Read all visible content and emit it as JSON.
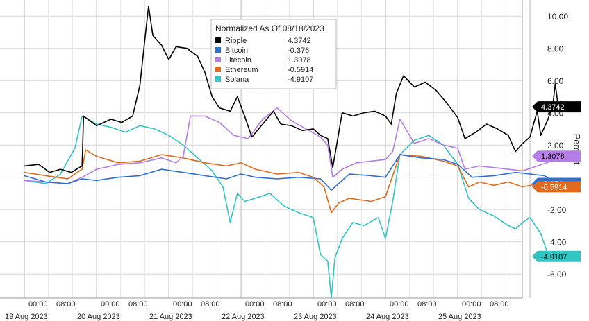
{
  "chart_data": {
    "type": "line",
    "legend": {
      "title": "Normalized As Of 08/18/2023",
      "placement": "top-center"
    },
    "ylabel": "Percent",
    "ylim": [
      -7.5,
      11
    ],
    "yticks": [
      -6,
      -4,
      -2,
      2,
      4,
      6,
      8,
      10
    ],
    "ytick_labels": [
      "-6.00",
      "-4.00",
      "-2.00",
      "2.00",
      "4.00",
      "6.00",
      "8.00",
      "10.00"
    ],
    "grid": true,
    "day_labels": [
      "19 Aug 2023",
      "20 Aug 2023",
      "21 Aug 2023",
      "22 Aug 2023",
      "23 Aug 2023",
      "24 Aug 2023",
      "25 Aug 2023"
    ],
    "time_labels": [
      "00:00",
      "08:00"
    ],
    "x_unit": "days from 00:00 19 Aug 2023",
    "series": [
      {
        "name": "Ripple",
        "color": "#000000",
        "last_value": "4.3742",
        "badge_text_color": "#ffffff",
        "points": [
          [
            0,
            0.7
          ],
          [
            0.2,
            0.8
          ],
          [
            0.35,
            0.3
          ],
          [
            0.5,
            0.5
          ],
          [
            0.65,
            0.3
          ],
          [
            0.8,
            0.7
          ],
          [
            0.82,
            3.8
          ],
          [
            1.0,
            3.2
          ],
          [
            1.2,
            3.6
          ],
          [
            1.35,
            3.4
          ],
          [
            1.5,
            3.8
          ],
          [
            1.6,
            5.7
          ],
          [
            1.68,
            9.0
          ],
          [
            1.72,
            10.6
          ],
          [
            1.78,
            8.8
          ],
          [
            1.9,
            8.2
          ],
          [
            2.0,
            7.3
          ],
          [
            2.1,
            8.1
          ],
          [
            2.25,
            8.0
          ],
          [
            2.4,
            7.5
          ],
          [
            2.5,
            6.5
          ],
          [
            2.6,
            5.0
          ],
          [
            2.7,
            4.3
          ],
          [
            2.85,
            4.1
          ],
          [
            2.95,
            5.0
          ],
          [
            3.05,
            3.8
          ],
          [
            3.15,
            2.5
          ],
          [
            3.3,
            3.3
          ],
          [
            3.45,
            4.1
          ],
          [
            3.55,
            3.3
          ],
          [
            3.7,
            3.2
          ],
          [
            3.85,
            2.9
          ],
          [
            4.0,
            3.0
          ],
          [
            4.1,
            2.6
          ],
          [
            4.2,
            2.4
          ],
          [
            4.27,
            0.6
          ],
          [
            4.4,
            4.0
          ],
          [
            4.55,
            3.8
          ],
          [
            4.7,
            4.0
          ],
          [
            4.85,
            4.1
          ],
          [
            5.0,
            3.8
          ],
          [
            5.08,
            3.3
          ],
          [
            5.15,
            5.2
          ],
          [
            5.25,
            6.3
          ],
          [
            5.4,
            5.6
          ],
          [
            5.55,
            5.9
          ],
          [
            5.7,
            5.4
          ],
          [
            5.85,
            4.6
          ],
          [
            6.0,
            3.7
          ],
          [
            6.1,
            2.4
          ],
          [
            6.25,
            2.8
          ],
          [
            6.4,
            3.3
          ],
          [
            6.55,
            3.0
          ],
          [
            6.7,
            2.6
          ],
          [
            6.8,
            1.6
          ],
          [
            6.9,
            2.1
          ],
          [
            7.0,
            2.5
          ],
          [
            7.1,
            4.1
          ],
          [
            7.15,
            2.6
          ],
          [
            7.25,
            3.6
          ],
          [
            7.32,
            4.6
          ],
          [
            7.35,
            5.8
          ],
          [
            7.38,
            4.8
          ],
          [
            7.4,
            4.37
          ]
        ]
      },
      {
        "name": "Bitcoin",
        "color": "#2f6fcf",
        "last_value": "-0.376",
        "badge_text_color": "#ffffff",
        "points": [
          [
            0,
            0.1
          ],
          [
            0.3,
            -0.3
          ],
          [
            0.6,
            -0.4
          ],
          [
            0.8,
            -0.1
          ],
          [
            1.0,
            -0.2
          ],
          [
            1.3,
            0.0
          ],
          [
            1.6,
            0.1
          ],
          [
            1.9,
            0.5
          ],
          [
            2.2,
            0.3
          ],
          [
            2.5,
            0.1
          ],
          [
            2.8,
            -0.1
          ],
          [
            3.0,
            0.2
          ],
          [
            3.2,
            0.0
          ],
          [
            3.5,
            -0.1
          ],
          [
            3.8,
            0.0
          ],
          [
            4.1,
            -0.1
          ],
          [
            4.25,
            -0.8
          ],
          [
            4.5,
            0.2
          ],
          [
            4.8,
            0.1
          ],
          [
            5.0,
            0.0
          ],
          [
            5.2,
            1.4
          ],
          [
            5.5,
            1.2
          ],
          [
            5.8,
            1.1
          ],
          [
            6.0,
            0.8
          ],
          [
            6.2,
            0.0
          ],
          [
            6.5,
            0.1
          ],
          [
            6.8,
            0.3
          ],
          [
            7.0,
            0.2
          ],
          [
            7.2,
            0.1
          ],
          [
            7.4,
            -0.38
          ]
        ]
      },
      {
        "name": "Litecoin",
        "color": "#b57ee6",
        "last_value": "1.3078",
        "badge_text_color": "#000000",
        "points": [
          [
            0,
            -0.2
          ],
          [
            0.3,
            -0.3
          ],
          [
            0.6,
            -0.4
          ],
          [
            0.8,
            0.0
          ],
          [
            1.0,
            0.5
          ],
          [
            1.3,
            0.8
          ],
          [
            1.6,
            0.9
          ],
          [
            1.9,
            1.2
          ],
          [
            2.1,
            0.9
          ],
          [
            2.2,
            1.3
          ],
          [
            2.3,
            3.8
          ],
          [
            2.5,
            3.8
          ],
          [
            2.7,
            3.4
          ],
          [
            2.9,
            2.6
          ],
          [
            3.1,
            2.4
          ],
          [
            3.3,
            3.6
          ],
          [
            3.5,
            4.3
          ],
          [
            3.7,
            3.5
          ],
          [
            3.9,
            3.0
          ],
          [
            4.1,
            2.5
          ],
          [
            4.2,
            2.0
          ],
          [
            4.27,
            0.0
          ],
          [
            4.4,
            0.5
          ],
          [
            4.6,
            0.9
          ],
          [
            4.8,
            1.0
          ],
          [
            5.0,
            1.1
          ],
          [
            5.1,
            1.6
          ],
          [
            5.2,
            3.6
          ],
          [
            5.4,
            2.1
          ],
          [
            5.6,
            2.4
          ],
          [
            5.8,
            2.0
          ],
          [
            6.0,
            1.8
          ],
          [
            6.1,
            0.5
          ],
          [
            6.3,
            0.7
          ],
          [
            6.5,
            0.6
          ],
          [
            6.7,
            0.5
          ],
          [
            6.9,
            0.4
          ],
          [
            7.1,
            0.7
          ],
          [
            7.3,
            1.0
          ],
          [
            7.4,
            1.31
          ]
        ]
      },
      {
        "name": "Ethereum",
        "color": "#e06a1e",
        "last_value": "-0.5914",
        "badge_text_color": "#ffffff",
        "points": [
          [
            0,
            0.3
          ],
          [
            0.3,
            0.1
          ],
          [
            0.6,
            -0.1
          ],
          [
            0.8,
            0.5
          ],
          [
            0.85,
            1.7
          ],
          [
            1.0,
            1.3
          ],
          [
            1.3,
            0.9
          ],
          [
            1.6,
            1.0
          ],
          [
            1.9,
            1.4
          ],
          [
            2.2,
            1.2
          ],
          [
            2.5,
            0.9
          ],
          [
            2.8,
            0.7
          ],
          [
            3.0,
            0.9
          ],
          [
            3.2,
            0.5
          ],
          [
            3.5,
            0.2
          ],
          [
            3.8,
            0.3
          ],
          [
            4.0,
            0.0
          ],
          [
            4.15,
            -0.6
          ],
          [
            4.25,
            -2.2
          ],
          [
            4.35,
            -1.6
          ],
          [
            4.5,
            -1.3
          ],
          [
            4.8,
            -1.5
          ],
          [
            5.0,
            -1.2
          ],
          [
            5.2,
            1.4
          ],
          [
            5.5,
            1.3
          ],
          [
            5.8,
            1.0
          ],
          [
            6.0,
            0.7
          ],
          [
            6.15,
            -0.6
          ],
          [
            6.3,
            -0.3
          ],
          [
            6.5,
            -0.5
          ],
          [
            6.7,
            -0.3
          ],
          [
            6.9,
            -0.6
          ],
          [
            7.1,
            -0.4
          ],
          [
            7.25,
            -0.9
          ],
          [
            7.4,
            -0.59
          ]
        ]
      },
      {
        "name": "Solana",
        "color": "#33c4c4",
        "last_value": "-4.9107",
        "badge_text_color": "#000000",
        "points": [
          [
            0,
            -0.2
          ],
          [
            0.3,
            -0.4
          ],
          [
            0.5,
            0.2
          ],
          [
            0.7,
            1.8
          ],
          [
            0.8,
            3.8
          ],
          [
            1.0,
            3.3
          ],
          [
            1.2,
            3.1
          ],
          [
            1.4,
            2.8
          ],
          [
            1.6,
            3.2
          ],
          [
            1.8,
            3.0
          ],
          [
            2.0,
            2.6
          ],
          [
            2.2,
            2.0
          ],
          [
            2.4,
            1.2
          ],
          [
            2.6,
            0.4
          ],
          [
            2.75,
            -0.6
          ],
          [
            2.85,
            -2.8
          ],
          [
            2.95,
            -1.0
          ],
          [
            3.05,
            -1.5
          ],
          [
            3.2,
            -1.3
          ],
          [
            3.4,
            -1.0
          ],
          [
            3.6,
            -1.8
          ],
          [
            3.8,
            -2.2
          ],
          [
            4.0,
            -2.5
          ],
          [
            4.1,
            -4.8
          ],
          [
            4.2,
            -5.2
          ],
          [
            4.25,
            -7.5
          ],
          [
            4.3,
            -5.0
          ],
          [
            4.4,
            -3.8
          ],
          [
            4.55,
            -2.8
          ],
          [
            4.7,
            -3.0
          ],
          [
            4.9,
            -2.5
          ],
          [
            5.0,
            -3.8
          ],
          [
            5.1,
            -1.5
          ],
          [
            5.2,
            1.4
          ],
          [
            5.4,
            2.3
          ],
          [
            5.6,
            2.6
          ],
          [
            5.8,
            2.0
          ],
          [
            6.0,
            0.8
          ],
          [
            6.15,
            -1.3
          ],
          [
            6.3,
            -2.0
          ],
          [
            6.5,
            -2.4
          ],
          [
            6.7,
            -3.0
          ],
          [
            6.8,
            -3.2
          ],
          [
            6.9,
            -2.8
          ],
          [
            7.0,
            -2.5
          ],
          [
            7.15,
            -3.5
          ],
          [
            7.25,
            -4.8
          ],
          [
            7.35,
            -5.1
          ],
          [
            7.4,
            -4.91
          ]
        ]
      }
    ]
  }
}
